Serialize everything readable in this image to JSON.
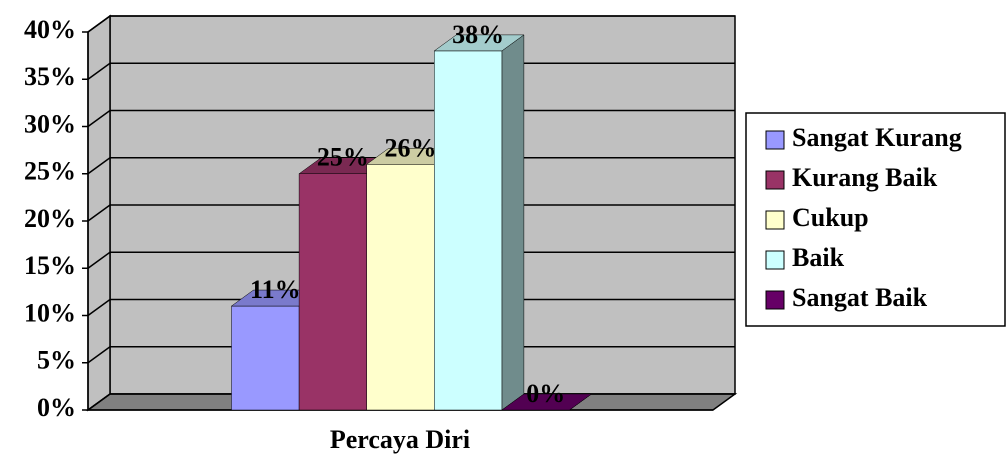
{
  "chart_data": {
    "type": "bar3d",
    "categories": [
      "Percaya Diri"
    ],
    "xlabel": "Percaya Diri",
    "series": [
      {
        "name": "Sangat Kurang",
        "color": "#9999ff",
        "values": [
          11
        ],
        "value_labels": [
          "11%"
        ]
      },
      {
        "name": "Kurang Baik",
        "color": "#993366",
        "values": [
          25
        ],
        "value_labels": [
          "25%"
        ]
      },
      {
        "name": "Cukup",
        "color": "#ffffcc",
        "values": [
          26
        ],
        "value_labels": [
          "26%"
        ]
      },
      {
        "name": "Baik",
        "color": "#ccffff",
        "values": [
          38
        ],
        "value_labels": [
          "38%"
        ]
      },
      {
        "name": "Sangat Baik",
        "color": "#660066",
        "values": [
          0
        ],
        "value_labels": [
          "0%"
        ]
      }
    ],
    "ylim": [
      0,
      40
    ],
    "yticks": [
      {
        "value": 0,
        "label": "0%"
      },
      {
        "value": 5,
        "label": "5%"
      },
      {
        "value": 10,
        "label": "10%"
      },
      {
        "value": 15,
        "label": "15%"
      },
      {
        "value": 20,
        "label": "20%"
      },
      {
        "value": 25,
        "label": "25%"
      },
      {
        "value": 30,
        "label": "30%"
      },
      {
        "value": 35,
        "label": "35%"
      },
      {
        "value": 40,
        "label": "40%"
      }
    ],
    "grid": true,
    "legend": "right"
  }
}
